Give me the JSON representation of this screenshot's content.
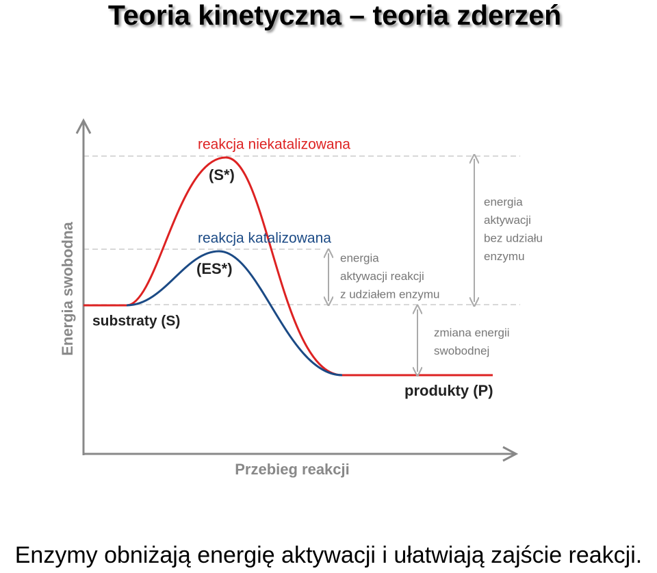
{
  "header": {
    "title": "Teoria kinetyczna – teoria zderzeń"
  },
  "diagram": {
    "y_axis_label": "Energia swobodna",
    "x_axis_label": "Przebieg reakcji",
    "uncatalyzed_label": "reakcja niekatalizowana",
    "uncatalyzed_state": "(S*)",
    "catalyzed_label": "reakcja katalizowana",
    "catalyzed_state": "(ES*)",
    "substrates": "substraty (S)",
    "products": "produkty (P)",
    "catalyzed_activation": [
      "energia",
      "aktywacji reakcji",
      "z udziałem enzymu"
    ],
    "uncatalyzed_activation": [
      "energia",
      "aktywacji",
      "bez udziału",
      "enzymu"
    ],
    "free_energy_change": [
      "zmiana energii",
      "swobodnej"
    ]
  },
  "caption": "Enzymy obniżają energię aktywacji i ułatwiają zajście reakcji."
}
